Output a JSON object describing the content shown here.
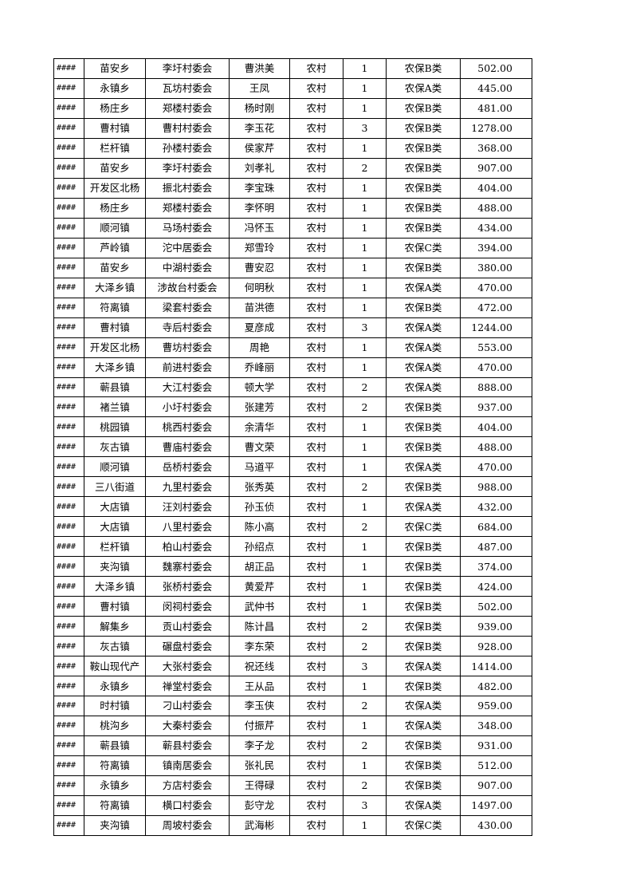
{
  "rows": [
    [
      "####",
      "苗安乡",
      "李圩村委会",
      "曹洪美",
      "农村",
      "1",
      "农保B类",
      "502.00"
    ],
    [
      "####",
      "永镇乡",
      "瓦坊村委会",
      "王凤",
      "农村",
      "1",
      "农保A类",
      "445.00"
    ],
    [
      "####",
      "杨庄乡",
      "郑楼村委会",
      "杨时刚",
      "农村",
      "1",
      "农保B类",
      "481.00"
    ],
    [
      "####",
      "曹村镇",
      "曹村村委会",
      "李玉花",
      "农村",
      "3",
      "农保B类",
      "1278.00"
    ],
    [
      "####",
      "栏杆镇",
      "孙楼村委会",
      "侯家芹",
      "农村",
      "1",
      "农保B类",
      "368.00"
    ],
    [
      "####",
      "苗安乡",
      "李圩村委会",
      "刘孝礼",
      "农村",
      "2",
      "农保B类",
      "907.00"
    ],
    [
      "####",
      "开发区北杨",
      "振北村委会",
      "李宝珠",
      "农村",
      "1",
      "农保B类",
      "404.00"
    ],
    [
      "####",
      "杨庄乡",
      "郑楼村委会",
      "李怀明",
      "农村",
      "1",
      "农保B类",
      "488.00"
    ],
    [
      "####",
      "顺河镇",
      "马场村委会",
      "冯怀玉",
      "农村",
      "1",
      "农保B类",
      "434.00"
    ],
    [
      "####",
      "芦岭镇",
      "沱中居委会",
      "郑雪玲",
      "农村",
      "1",
      "农保C类",
      "394.00"
    ],
    [
      "####",
      "苗安乡",
      "中湖村委会",
      "曹安忍",
      "农村",
      "1",
      "农保B类",
      "380.00"
    ],
    [
      "####",
      "大泽乡镇",
      "涉故台村委会",
      "何明秋",
      "农村",
      "1",
      "农保A类",
      "470.00"
    ],
    [
      "####",
      "符离镇",
      "梁套村委会",
      "苗洪德",
      "农村",
      "1",
      "农保B类",
      "472.00"
    ],
    [
      "####",
      "曹村镇",
      "寺后村委会",
      "夏彦成",
      "农村",
      "3",
      "农保A类",
      "1244.00"
    ],
    [
      "####",
      "开发区北杨",
      "曹坊村委会",
      "周艳",
      "农村",
      "1",
      "农保A类",
      "553.00"
    ],
    [
      "####",
      "大泽乡镇",
      "前进村委会",
      "乔峰丽",
      "农村",
      "1",
      "农保A类",
      "470.00"
    ],
    [
      "####",
      "蕲县镇",
      "大江村委会",
      "顿大学",
      "农村",
      "2",
      "农保A类",
      "888.00"
    ],
    [
      "####",
      "褚兰镇",
      "小圩村委会",
      "张建芳",
      "农村",
      "2",
      "农保B类",
      "937.00"
    ],
    [
      "####",
      "桃园镇",
      "桃西村委会",
      "余清华",
      "农村",
      "1",
      "农保B类",
      "404.00"
    ],
    [
      "####",
      "灰古镇",
      "曹庙村委会",
      "曹文荣",
      "农村",
      "1",
      "农保B类",
      "488.00"
    ],
    [
      "####",
      "顺河镇",
      "岳桥村委会",
      "马道平",
      "农村",
      "1",
      "农保A类",
      "470.00"
    ],
    [
      "####",
      "三八街道",
      "九里村委会",
      "张秀英",
      "农村",
      "2",
      "农保B类",
      "988.00"
    ],
    [
      "####",
      "大店镇",
      "汪刘村委会",
      "孙玉侦",
      "农村",
      "1",
      "农保A类",
      "432.00"
    ],
    [
      "####",
      "大店镇",
      "八里村委会",
      "陈小高",
      "农村",
      "2",
      "农保C类",
      "684.00"
    ],
    [
      "####",
      "栏杆镇",
      "柏山村委会",
      "孙绍点",
      "农村",
      "1",
      "农保B类",
      "487.00"
    ],
    [
      "####",
      "夹沟镇",
      "魏寨村委会",
      "胡正品",
      "农村",
      "1",
      "农保B类",
      "374.00"
    ],
    [
      "####",
      "大泽乡镇",
      "张桥村委会",
      "黄爱芹",
      "农村",
      "1",
      "农保B类",
      "424.00"
    ],
    [
      "####",
      "曹村镇",
      "闵祠村委会",
      "武仲书",
      "农村",
      "1",
      "农保B类",
      "502.00"
    ],
    [
      "####",
      "解集乡",
      "贡山村委会",
      "陈计昌",
      "农村",
      "2",
      "农保B类",
      "939.00"
    ],
    [
      "####",
      "灰古镇",
      "碾盘村委会",
      "李东荣",
      "农村",
      "2",
      "农保B类",
      "928.00"
    ],
    [
      "####",
      "鞍山现代产",
      "大张村委会",
      "祝还线",
      "农村",
      "3",
      "农保A类",
      "1414.00"
    ],
    [
      "####",
      "永镇乡",
      "禅堂村委会",
      "王从品",
      "农村",
      "1",
      "农保B类",
      "482.00"
    ],
    [
      "####",
      "时村镇",
      "刁山村委会",
      "李玉侠",
      "农村",
      "2",
      "农保A类",
      "959.00"
    ],
    [
      "####",
      "桃沟乡",
      "大秦村委会",
      "付振芹",
      "农村",
      "1",
      "农保A类",
      "348.00"
    ],
    [
      "####",
      "蕲县镇",
      "蕲县村委会",
      "李子龙",
      "农村",
      "2",
      "农保B类",
      "931.00"
    ],
    [
      "####",
      "符离镇",
      "镇南居委会",
      "张礼民",
      "农村",
      "1",
      "农保B类",
      "512.00"
    ],
    [
      "####",
      "永镇乡",
      "方店村委会",
      "王得碌",
      "农村",
      "2",
      "农保B类",
      "907.00"
    ],
    [
      "####",
      "符离镇",
      "横口村委会",
      "彭守龙",
      "农村",
      "3",
      "农保A类",
      "1497.00"
    ],
    [
      "####",
      "夹沟镇",
      "周坡村委会",
      "武海彬",
      "农村",
      "1",
      "农保C类",
      "430.00"
    ]
  ]
}
